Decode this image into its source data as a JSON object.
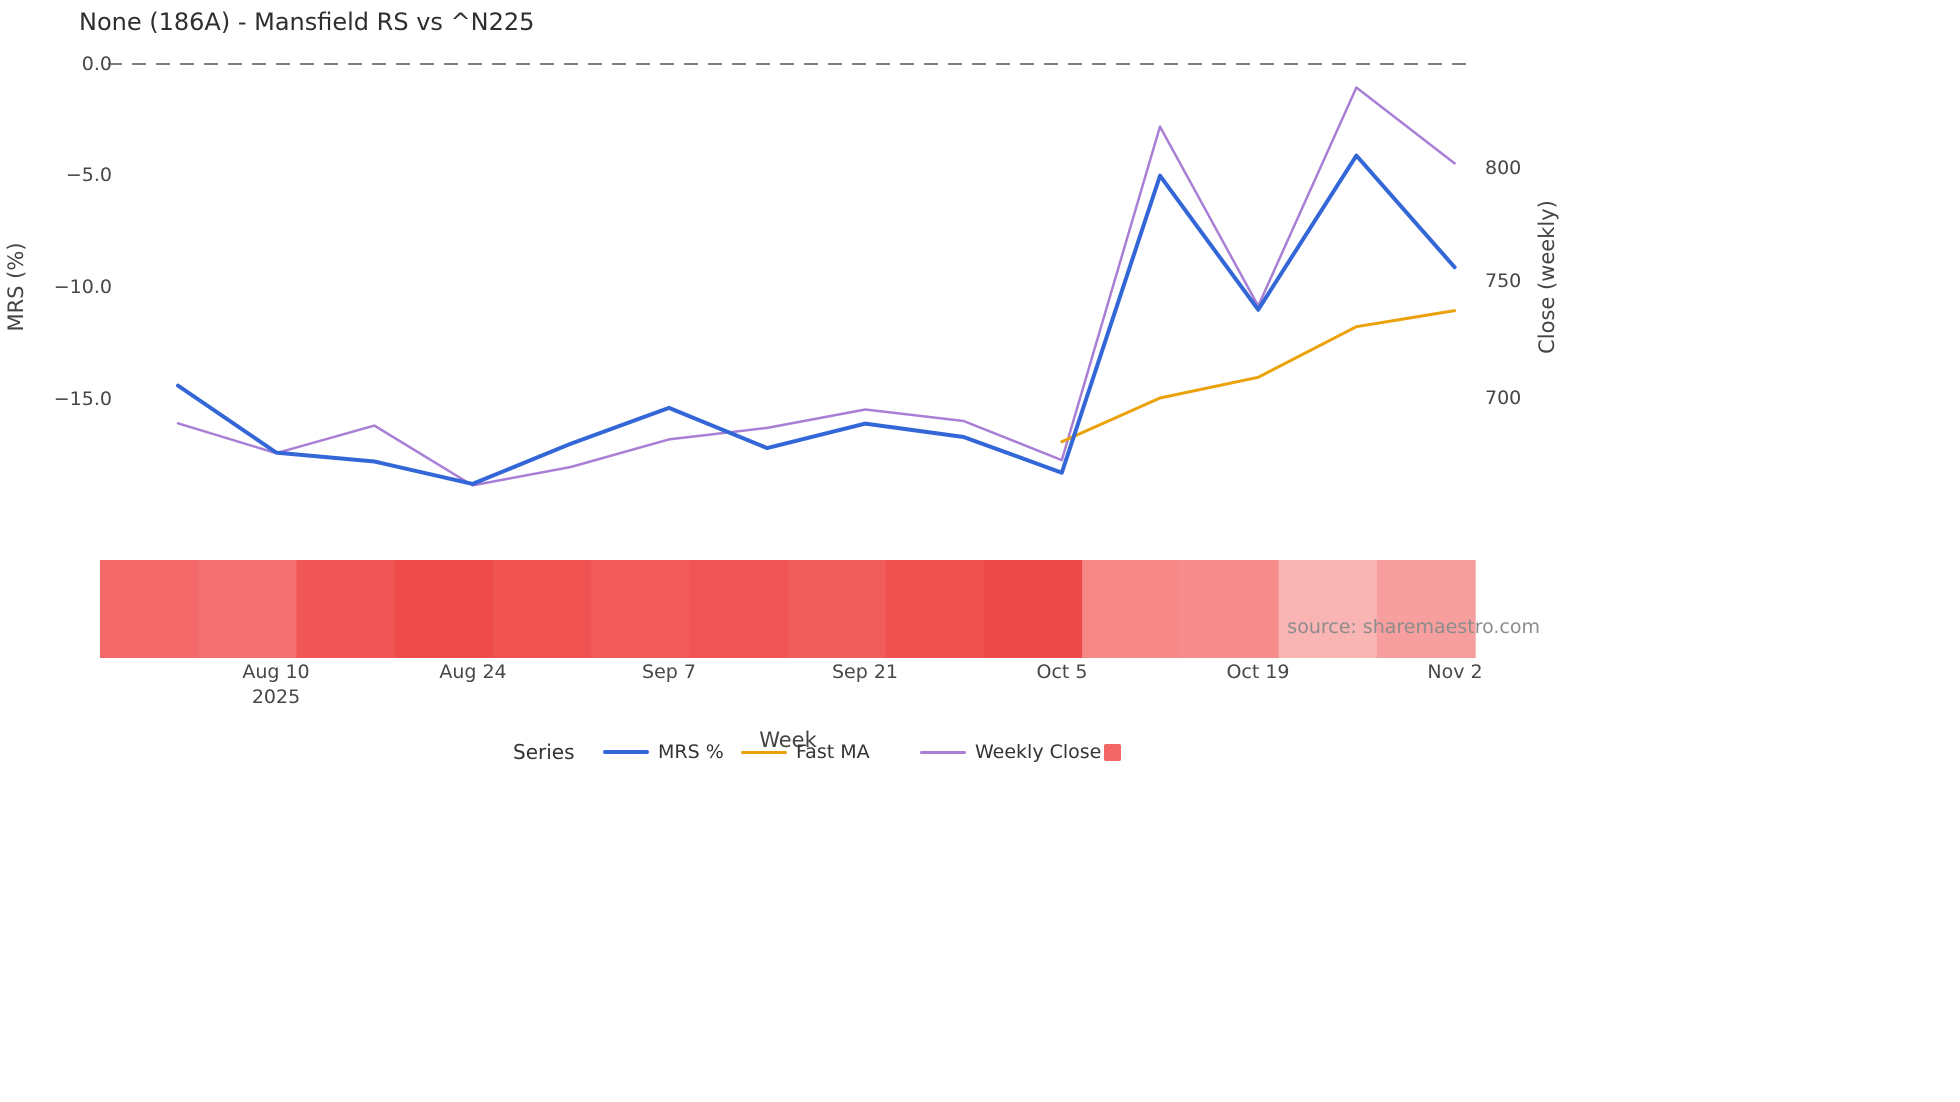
{
  "title": "None (186A) - Mansfield RS vs ^N225",
  "source_note": "source: sharemaestro.com",
  "axes": {
    "left": {
      "label": "MRS (%)",
      "ticks": [
        "0.0",
        "−5.0",
        "−10.0",
        "−15.0"
      ],
      "tick_values": [
        0,
        -5,
        -10,
        -15
      ]
    },
    "right": {
      "label": "Close (weekly)",
      "ticks": [
        "800",
        "750",
        "700"
      ],
      "tick_values": [
        800,
        750,
        700
      ]
    },
    "x": {
      "label": "Week",
      "year": "2025",
      "ticks": [
        "Aug 10",
        "Aug 24",
        "Sep 7",
        "Sep 21",
        "Oct 5",
        "Oct 19",
        "Nov 2"
      ]
    }
  },
  "legend": {
    "title": "Series",
    "items": [
      {
        "label": "MRS %",
        "type": "line"
      },
      {
        "label": "Fast MA",
        "type": "line"
      },
      {
        "label": "Weekly Close",
        "type": "line"
      },
      {
        "label": "",
        "type": "square"
      }
    ],
    "heatmap_color": "#f26666"
  },
  "chart_data": {
    "type": "line",
    "title": "None (186A) - Mansfield RS vs ^N225",
    "xlabel": "Week",
    "ylabel_left": "MRS (%)",
    "ylabel_right": "Close (weekly)",
    "x": [
      "Aug 3",
      "Aug 10",
      "Aug 17",
      "Aug 24",
      "Aug 31",
      "Sep 7",
      "Sep 14",
      "Sep 21",
      "Sep 28",
      "Oct 5",
      "Oct 12",
      "Oct 19",
      "Oct 26",
      "Nov 2"
    ],
    "year": "2025",
    "series": [
      {
        "name": "MRS %",
        "yaxis": "left",
        "color": "#3366d6",
        "width": 4,
        "values": [
          -14.4,
          -17.4,
          -17.8,
          -18.8,
          -17.0,
          -15.4,
          -17.2,
          -16.1,
          -16.7,
          -18.3,
          -5.0,
          -11.0,
          -4.1,
          -9.1
        ]
      },
      {
        "name": "Fast MA",
        "yaxis": "right",
        "color": "#eba10a",
        "width": 3,
        "values": [
          null,
          null,
          null,
          null,
          null,
          null,
          null,
          null,
          null,
          681,
          700,
          709,
          731,
          738
        ]
      },
      {
        "name": "Weekly Close",
        "yaxis": "right",
        "color": "#a97fd6",
        "width": 2.5,
        "values": [
          689,
          676,
          688,
          662,
          670,
          682,
          687,
          695,
          690,
          673,
          818,
          740,
          835,
          802
        ]
      }
    ],
    "left_axis": {
      "tick_values": [
        0,
        -5,
        -10,
        -15
      ],
      "range": [
        -20.5,
        0.5
      ]
    },
    "right_axis": {
      "tick_values": [
        800,
        750,
        700
      ],
      "range": [
        655,
        850
      ]
    },
    "zero_line": {
      "value": 0,
      "style": "dashed",
      "color": "#555555"
    },
    "heatmap_strip": {
      "colors": [
        "#f36868",
        "#f47272",
        "#f15656",
        "#ef4b4b",
        "#f05151",
        "#f15a5a",
        "#f05454",
        "#f15c5c",
        "#f05050",
        "#ef4a4a",
        "#f68888",
        "#f68c8c",
        "#f9b4b4",
        "#f79e9e"
      ]
    },
    "grid": false,
    "legend_position": "bottom"
  }
}
